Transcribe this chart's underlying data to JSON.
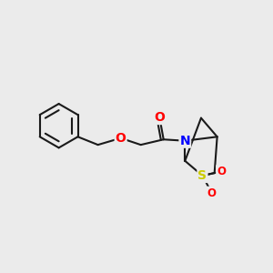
{
  "background_color": "#ebebeb",
  "bond_color": "#1a1a1a",
  "bond_width": 1.5,
  "atom_colors": {
    "O": "#ff0000",
    "N": "#0000ff",
    "S": "#cccc00",
    "C": "#1a1a1a"
  },
  "font_size_atoms": 10,
  "font_size_so": 8.5,
  "figsize": [
    3.0,
    3.0
  ],
  "dpi": 100,
  "xlim": [
    0,
    10
  ],
  "ylim": [
    0,
    10
  ]
}
